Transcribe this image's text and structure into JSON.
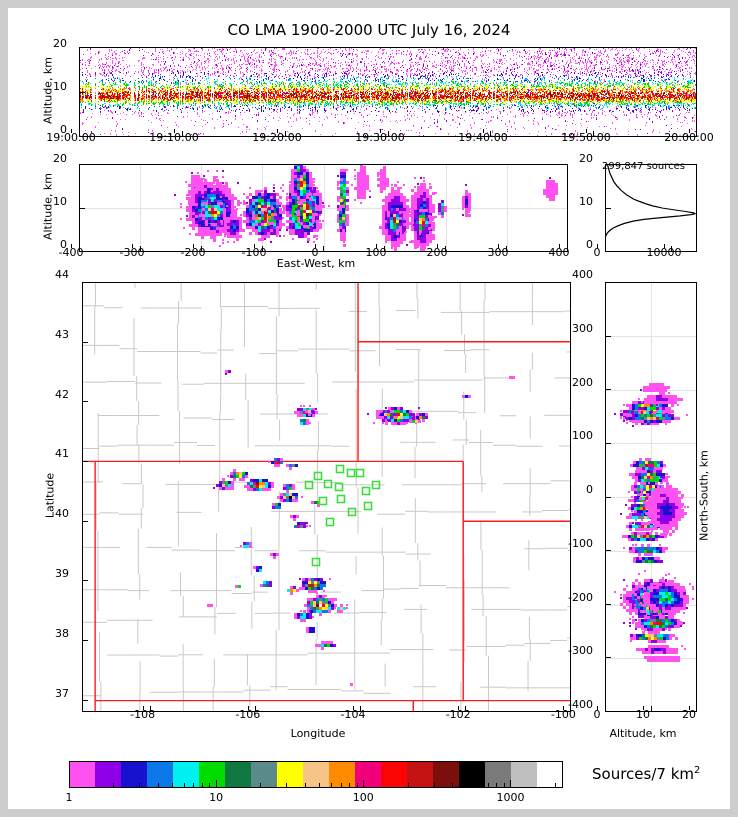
{
  "title": "CO LMA 1900-2000 UTC July 16, 2024",
  "labels": {
    "time_ylabel": "Altitude, km",
    "ew_ylabel": "Altitude, km",
    "ew_xlabel": "East-West, km",
    "map_xlabel": "Longitude",
    "map_ylabel": "Latitude",
    "ns_xlabel": "Altitude, km",
    "ns_ylabel": "North-South, km",
    "hist_annotation": "299,847 sources"
  },
  "colorbar": {
    "label_base": "Sources/7 km",
    "label_sup": "2",
    "tick_labels": [
      "1",
      "10",
      "100",
      "1000"
    ],
    "tick_values": [
      1,
      10,
      100,
      1000
    ],
    "minor_tick_values": [
      2,
      3,
      4,
      5,
      6,
      7,
      8,
      9,
      20,
      30,
      40,
      50,
      60,
      70,
      80,
      90,
      200,
      300,
      400,
      500,
      600,
      700,
      800,
      900,
      2000
    ],
    "range": [
      1,
      2240
    ],
    "colors": [
      "#ff50f0",
      "#8f00e8",
      "#1612cf",
      "#0a78e8",
      "#00f0f0",
      "#00dc00",
      "#0e7a42",
      "#5a8a8a",
      "#ffff00",
      "#f7c488",
      "#ff8c00",
      "#f2007c",
      "#fb0404",
      "#c41212",
      "#7c0e0e",
      "#000000",
      "#7a7a7a",
      "#bfbfbf",
      "#ffffff"
    ]
  },
  "ticks": {
    "time_x": [
      "19:00:00",
      "19:10:00",
      "19:20:00",
      "19:30:00",
      "19:40:00",
      "19:50:00",
      "20:00:00"
    ],
    "alt_y": [
      "0",
      "10",
      "20"
    ],
    "ew_x": [
      "-400",
      "-300",
      "-200",
      "-100",
      "0",
      "100",
      "200",
      "300",
      "400"
    ],
    "hist_x": [
      "0",
      "10000"
    ],
    "map_x": [
      "-108",
      "-106",
      "-104",
      "-102",
      "-100"
    ],
    "map_y": [
      "44",
      "43",
      "42",
      "41",
      "40",
      "39",
      "38",
      "37"
    ],
    "ns_x": [
      "0",
      "10",
      "20"
    ],
    "ns_y": [
      "400",
      "300",
      "200",
      "100",
      "0",
      "-100",
      "-200",
      "-300",
      "-400"
    ]
  },
  "chart_data": {
    "type": "multi-panel-lma-density",
    "time_height": {
      "type": "scatter-density",
      "x_range": [
        "19:00:00",
        "20:00:00"
      ],
      "alt_range_km": [
        0,
        20
      ],
      "band_center_km": 9.3,
      "band_sigma_km": 2.0,
      "n_points": 16000,
      "n_gap_streaks": 42
    },
    "east_west": {
      "type": "density",
      "xlim": [
        -400,
        400
      ],
      "ylim": [
        0,
        20
      ],
      "grid_x_step": 100,
      "grid_y": [
        10
      ],
      "blobs": [
        [
          -210,
          14,
          14,
          4,
          1
        ],
        [
          -185,
          10,
          42,
          6.5,
          7
        ],
        [
          -183,
          9.5,
          20,
          3,
          13
        ],
        [
          -150,
          6,
          15,
          3,
          3
        ],
        [
          -100,
          9,
          33,
          5.5,
          15
        ],
        [
          -108,
          8.2,
          9,
          2,
          18
        ],
        [
          -88,
          8.6,
          8,
          2,
          18
        ],
        [
          -35,
          10,
          30,
          7,
          15
        ],
        [
          -30,
          9.5,
          15,
          3.5,
          18
        ],
        [
          -38,
          16,
          16,
          4.5,
          12
        ],
        [
          -42,
          19,
          10,
          2.5,
          5
        ],
        [
          30,
          11,
          8,
          9,
          12
        ],
        [
          28,
          8,
          5,
          3,
          14
        ],
        [
          115,
          8,
          22,
          7,
          5
        ],
        [
          115,
          7.5,
          13,
          3,
          14
        ],
        [
          160,
          8,
          20,
          8,
          4
        ],
        [
          160,
          7.2,
          12,
          3,
          14
        ],
        [
          192,
          10,
          6,
          2,
          11
        ],
        [
          232,
          11.5,
          7,
          3,
          2
        ],
        [
          370,
          14.5,
          10,
          2.5,
          0
        ],
        [
          60,
          16,
          10,
          4,
          0
        ],
        [
          95,
          17,
          8,
          3,
          0
        ]
      ]
    },
    "histogram": {
      "type": "line",
      "xlim": [
        0,
        13700
      ],
      "ylim": [
        0,
        20
      ],
      "total_sources": 299847,
      "curve_alt_count": [
        [
          20,
          350
        ],
        [
          18,
          700
        ],
        [
          16,
          1300
        ],
        [
          15,
          1800
        ],
        [
          14,
          2400
        ],
        [
          13,
          3200
        ],
        [
          12,
          4300
        ],
        [
          11.5,
          5100
        ],
        [
          11,
          6000
        ],
        [
          10.5,
          7100
        ],
        [
          10,
          8500
        ],
        [
          9.6,
          10200
        ],
        [
          9.2,
          12000
        ],
        [
          8.9,
          13200
        ],
        [
          8.7,
          13400
        ],
        [
          8.5,
          12800
        ],
        [
          8.2,
          11200
        ],
        [
          8,
          9600
        ],
        [
          7.7,
          7600
        ],
        [
          7.4,
          5800
        ],
        [
          7,
          4200
        ],
        [
          6.5,
          2900
        ],
        [
          6,
          2000
        ],
        [
          5.5,
          1300
        ],
        [
          5,
          800
        ],
        [
          4.5,
          450
        ],
        [
          4,
          220
        ],
        [
          3.6,
          90
        ],
        [
          3.2,
          20
        ],
        [
          3,
          0
        ]
      ]
    },
    "map": {
      "type": "density-map",
      "xlim": [
        -109.3,
        -100.0
      ],
      "ylim": [
        36.81,
        44.0
      ],
      "blobs": [
        [
          -106.55,
          42.52,
          0.06,
          0.04,
          1
        ],
        [
          -105.08,
          41.85,
          0.2,
          0.09,
          13
        ],
        [
          -105.0,
          41.84,
          0.08,
          0.04,
          15
        ],
        [
          -105.12,
          41.68,
          0.1,
          0.05,
          15
        ],
        [
          -103.35,
          41.8,
          0.38,
          0.14,
          13
        ],
        [
          -103.5,
          41.8,
          0.15,
          0.07,
          15
        ],
        [
          -102.98,
          41.7,
          0.1,
          0.06,
          15
        ],
        [
          -102.88,
          41.76,
          0.12,
          0.06,
          13
        ],
        [
          -102.0,
          42.1,
          0.08,
          0.04,
          2
        ],
        [
          -101.15,
          42.42,
          0.06,
          0.04,
          0
        ],
        [
          -105.62,
          41.02,
          0.13,
          0.06,
          15
        ],
        [
          -105.33,
          40.95,
          0.1,
          0.04,
          13
        ],
        [
          -106.35,
          40.8,
          0.2,
          0.08,
          13
        ],
        [
          -106.6,
          40.63,
          0.17,
          0.09,
          13
        ],
        [
          -105.95,
          40.63,
          0.28,
          0.11,
          16
        ],
        [
          -105.4,
          40.6,
          0.12,
          0.05,
          12
        ],
        [
          -105.4,
          40.44,
          0.2,
          0.09,
          17
        ],
        [
          -105.63,
          40.28,
          0.11,
          0.05,
          12
        ],
        [
          -104.88,
          40.33,
          0.08,
          0.04,
          14
        ],
        [
          -105.3,
          40.1,
          0.07,
          0.04,
          2
        ],
        [
          -105.18,
          39.95,
          0.13,
          0.06,
          15
        ],
        [
          -106.2,
          39.62,
          0.1,
          0.05,
          12
        ],
        [
          -105.65,
          39.45,
          0.08,
          0.04,
          3
        ],
        [
          -105.97,
          39.22,
          0.09,
          0.05,
          12
        ],
        [
          -106.35,
          38.93,
          0.06,
          0.04,
          9
        ],
        [
          -105.82,
          38.97,
          0.1,
          0.05,
          12
        ],
        [
          -105.33,
          38.87,
          0.12,
          0.06,
          12
        ],
        [
          -104.93,
          38.97,
          0.27,
          0.12,
          16
        ],
        [
          -104.78,
          38.62,
          0.3,
          0.16,
          18
        ],
        [
          -105.1,
          38.45,
          0.18,
          0.08,
          8
        ],
        [
          -104.4,
          38.58,
          0.11,
          0.06,
          13
        ],
        [
          -104.97,
          38.2,
          0.08,
          0.05,
          11
        ],
        [
          -104.67,
          37.95,
          0.2,
          0.06,
          6
        ],
        [
          -104.2,
          37.3,
          0.04,
          0.03,
          0
        ],
        [
          -106.9,
          38.62,
          0.05,
          0.03,
          0
        ]
      ],
      "stations": [
        [
          -104.4,
          40.88
        ],
        [
          -104.18,
          40.8
        ],
        [
          -104.02,
          40.8
        ],
        [
          -104.82,
          40.76
        ],
        [
          -104.99,
          40.6
        ],
        [
          -104.63,
          40.63
        ],
        [
          -104.41,
          40.57
        ],
        [
          -103.89,
          40.5
        ],
        [
          -104.72,
          40.34
        ],
        [
          -104.38,
          40.37
        ],
        [
          -103.86,
          40.25
        ],
        [
          -104.16,
          40.16
        ],
        [
          -104.59,
          39.99
        ],
        [
          -103.7,
          40.6
        ],
        [
          -104.85,
          39.31
        ]
      ],
      "state_borders": [
        [
          [
            -104.05,
            44.0
          ],
          [
            -104.05,
            41.0
          ]
        ],
        [
          [
            -104.05,
            43.0
          ],
          [
            -100.0,
            43.0
          ]
        ],
        [
          [
            -109.3,
            41.0
          ],
          [
            -102.05,
            41.0
          ]
        ],
        [
          [
            -109.05,
            41.0
          ],
          [
            -109.05,
            36.81
          ]
        ],
        [
          [
            -102.05,
            41.0
          ],
          [
            -102.05,
            37.0
          ]
        ],
        [
          [
            -102.05,
            40.0
          ],
          [
            -100.0,
            40.0
          ]
        ],
        [
          [
            -109.05,
            37.0
          ],
          [
            -100.0,
            37.0
          ]
        ],
        [
          [
            -103.0,
            37.0
          ],
          [
            -103.0,
            36.81
          ]
        ]
      ],
      "state_border_color": "#ff1a1a",
      "county_line_color": "#c9c9c9",
      "station_color": "#3ddc3d"
    },
    "north_south": {
      "type": "density",
      "xlim": [
        0,
        20
      ],
      "ylim": [
        -400,
        400
      ],
      "grid_y_step": 100,
      "grid_x": [
        10
      ],
      "blobs": [
        [
          8.5,
          157,
          5.5,
          18,
          15
        ],
        [
          7.5,
          158,
          2.5,
          9,
          15
        ],
        [
          10,
          150,
          6,
          10,
          12
        ],
        [
          9,
          172,
          5,
          8,
          12
        ],
        [
          12,
          186,
          4,
          10,
          1
        ],
        [
          11,
          206,
          3,
          8,
          0
        ],
        [
          9,
          62,
          4,
          10,
          13
        ],
        [
          9.5,
          40,
          4,
          14,
          12
        ],
        [
          9.2,
          18,
          3.5,
          14,
          16
        ],
        [
          9.3,
          14,
          2,
          5,
          18
        ],
        [
          9,
          0,
          3.8,
          9,
          16
        ],
        [
          9.2,
          -1,
          2,
          4,
          18
        ],
        [
          8.5,
          -18,
          4,
          10,
          13
        ],
        [
          8,
          -33,
          3.5,
          6,
          13
        ],
        [
          8.2,
          -52,
          4,
          7,
          13
        ],
        [
          8,
          -72,
          4.5,
          8,
          13
        ],
        [
          13,
          -20,
          4,
          45,
          2
        ],
        [
          9,
          -95,
          4.5,
          9,
          8
        ],
        [
          9,
          -115,
          3.5,
          6,
          12
        ],
        [
          10,
          -190,
          6.5,
          38,
          13
        ],
        [
          9,
          -180,
          3,
          12,
          18
        ],
        [
          10.5,
          -205,
          3.5,
          11,
          16
        ],
        [
          13,
          -185,
          5,
          30,
          6
        ],
        [
          11,
          -232,
          5,
          14,
          12
        ],
        [
          10,
          -258,
          5,
          9,
          13
        ],
        [
          11,
          -283,
          4.5,
          8,
          2
        ],
        [
          12,
          -300,
          4,
          6,
          0
        ]
      ]
    }
  }
}
